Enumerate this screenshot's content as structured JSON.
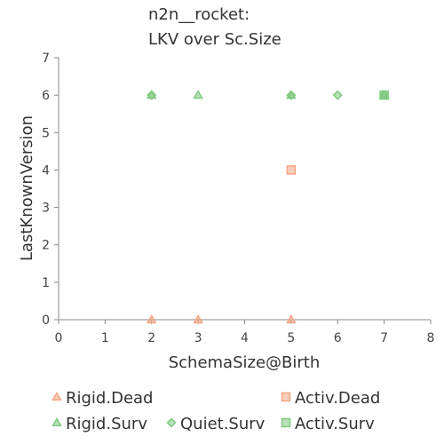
{
  "chart_data": {
    "type": "scatter",
    "title_lines": [
      "n2n__rocket:",
      "LKV over Sc.Size"
    ],
    "xlabel": "SchemaSize@Birth",
    "ylabel": "LastKnownVersion",
    "xlim": [
      0,
      8
    ],
    "ylim": [
      0,
      7
    ],
    "xticks": [
      "0",
      "1",
      "2",
      "3",
      "4",
      "5",
      "6",
      "7",
      "8"
    ],
    "yticks": [
      "0",
      "1",
      "2",
      "3",
      "4",
      "5",
      "6",
      "7"
    ],
    "grid": false,
    "legend_position": "bottom",
    "series": [
      {
        "name": "Rigid.Dead",
        "marker": "triangle",
        "color": "#f4a582",
        "points": [
          [
            2,
            0
          ],
          [
            3,
            0
          ],
          [
            5,
            0
          ]
        ]
      },
      {
        "name": "Activ.Dead",
        "marker": "square",
        "color": "#f4a582",
        "points": [
          [
            5,
            4
          ]
        ]
      },
      {
        "name": "Rigid.Surv",
        "marker": "triangle",
        "color": "#7fc97f",
        "points": [
          [
            2,
            6
          ],
          [
            3,
            6
          ],
          [
            5,
            6
          ],
          [
            7,
            6
          ]
        ]
      },
      {
        "name": "Quiet.Surv",
        "marker": "diamond",
        "color": "#7fc97f",
        "points": [
          [
            2,
            6
          ],
          [
            5,
            6
          ],
          [
            6,
            6
          ],
          [
            7,
            6
          ]
        ]
      },
      {
        "name": "Activ.Surv",
        "marker": "square",
        "color": "#7fc97f",
        "points": [
          [
            7,
            6
          ]
        ]
      }
    ]
  }
}
